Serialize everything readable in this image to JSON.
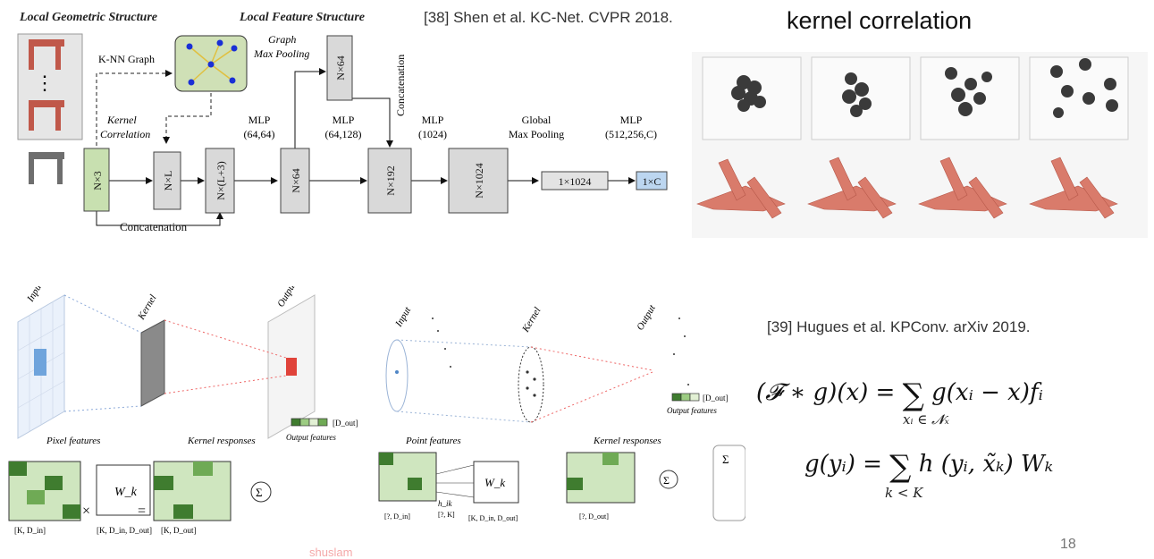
{
  "top_left": {
    "title_geometric": "Local Geometric Structure",
    "title_feature": "Local Feature Structure",
    "label_knn": "K-NN Graph",
    "label_graph_pool": "Graph\nMax Pooling",
    "label_kernel_corr": "Kernel\nCorrelation",
    "label_concat_vertical": "Concatenation",
    "label_concat_bottom": "Concatenation",
    "blocks": {
      "n3": "N×3",
      "nl": "N×L",
      "nl3": "N×(L+3)",
      "n64a": "N×64",
      "n64b": "N×64",
      "n192": "N×192",
      "n1024": "N×1024",
      "b1024": "1×1024",
      "b1c": "1×C"
    },
    "mlp_labels": [
      {
        "line1": "MLP",
        "line2": "(64,64)"
      },
      {
        "line1": "MLP",
        "line2": "(64,128)"
      },
      {
        "line1": "MLP",
        "line2": "(1024)"
      },
      {
        "line1": "Global",
        "line2": "Max Pooling"
      },
      {
        "line1": "MLP",
        "line2": "(512,256,C)"
      }
    ],
    "ellipsis": "⋮"
  },
  "citation_top": "[38] Shen et al. KC-Net. CVPR 2018.",
  "kernel_correlation_title": "kernel correlation",
  "bottom_left": {
    "label_input": "Input",
    "label_kernel": "Kernel",
    "label_output": "Output",
    "label_pixel_features": "Pixel features",
    "label_kernel_responses": "Kernel responses",
    "label_output_features": "Output features",
    "label_dout": "[D_out]",
    "label_wk": "W_k",
    "label_times": "×",
    "label_eq": "=",
    "label_sigma": "Σ",
    "dims_left": "[K, D_in]",
    "dims_mid": "[K, D_in, D_out]",
    "dims_right": "[K, D_out]"
  },
  "bottom_mid": {
    "label_input": "Input",
    "label_kernel": "Kernel",
    "label_output": "Output",
    "label_point_features": "Point features",
    "label_kernel_responses": "Kernel responses",
    "label_output_features": "Output features",
    "label_dout": "[D_out]",
    "label_wk": "W_k",
    "label_hik": "h_ik",
    "label_hik_dims": "[?, K]",
    "label_sigma": "Σ",
    "dims_left": "[?, D_in]",
    "dims_mid": "[K, D_in, D_out]",
    "dims_right": "[?, D_out]"
  },
  "citation_bottom": "[39] Hugues  et al. KPConv. arXiv 2019.",
  "equation1": {
    "lhs": "(𝓕 ∗ g)(x) = ",
    "sum_sub": "xᵢ ∈ 𝓝ₓ",
    "rhs": "g(xᵢ − x)fᵢ"
  },
  "equation2": {
    "lhs": "g(yᵢ) = ",
    "sum_sub": "k < K",
    "rhs": "h (yᵢ, x̃ₖ) Wₖ"
  },
  "page_number": "18",
  "watermark": "shuslam"
}
